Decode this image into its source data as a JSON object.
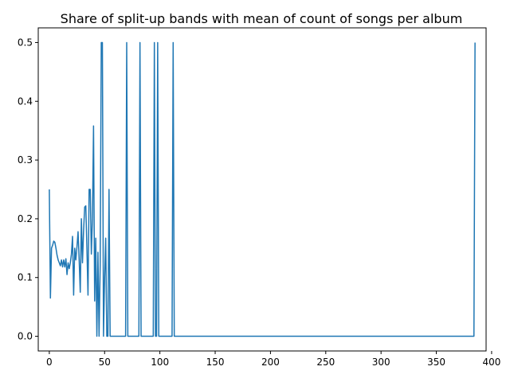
{
  "chart_data": {
    "type": "line",
    "title": "Share of split-up bands with mean of count of songs per album",
    "xlabel": "",
    "ylabel": "",
    "xlim": [
      -10,
      395
    ],
    "ylim": [
      -0.025,
      0.525
    ],
    "xticks": [
      0,
      50,
      100,
      150,
      200,
      250,
      300,
      350,
      400
    ],
    "yticks": [
      0.0,
      0.1,
      0.2,
      0.3,
      0.4,
      0.5
    ],
    "ytick_labels": [
      "0.0",
      "0.1",
      "0.2",
      "0.3",
      "0.4",
      "0.5"
    ],
    "grid": false,
    "legend": "none",
    "line_color": "#1f77b4",
    "series": [
      {
        "x": [
          0,
          1,
          2,
          3,
          4,
          5,
          6,
          7,
          8,
          9,
          10,
          11,
          12,
          13,
          14,
          15,
          16,
          17,
          18,
          19,
          20,
          21,
          22,
          23,
          24,
          25,
          26,
          27,
          28,
          29,
          30,
          31,
          32,
          33,
          34,
          35,
          36,
          37,
          38,
          39,
          40,
          41,
          42,
          43,
          44,
          45,
          46,
          47,
          48,
          49,
          50,
          51,
          52,
          53,
          54,
          55,
          56,
          57,
          69,
          70,
          71,
          72,
          81,
          82,
          83,
          94,
          95,
          96,
          97,
          98,
          99,
          111,
          112,
          113,
          384,
          385
        ],
        "y": [
          0.25,
          0.065,
          0.15,
          0.155,
          0.162,
          0.16,
          0.15,
          0.138,
          0.13,
          0.125,
          0.12,
          0.13,
          0.118,
          0.13,
          0.118,
          0.132,
          0.105,
          0.125,
          0.115,
          0.125,
          0.14,
          0.17,
          0.07,
          0.15,
          0.13,
          0.152,
          0.178,
          0.13,
          0.075,
          0.2,
          0.125,
          0.18,
          0.22,
          0.222,
          0.15,
          0.07,
          0.25,
          0.25,
          0.14,
          0.2,
          0.358,
          0.06,
          0.167,
          0.0,
          0.143,
          0.0,
          0.12,
          0.5,
          0.5,
          0.0,
          0.1,
          0.167,
          0.0,
          0.0,
          0.25,
          0.0,
          0.0,
          0.0,
          0.0,
          0.5,
          0.0,
          0.0,
          0.0,
          0.5,
          0.0,
          0.0,
          0.5,
          0.0,
          0.0,
          0.5,
          0.0,
          0.0,
          0.5,
          0.0,
          0.0,
          0.5
        ]
      }
    ]
  }
}
